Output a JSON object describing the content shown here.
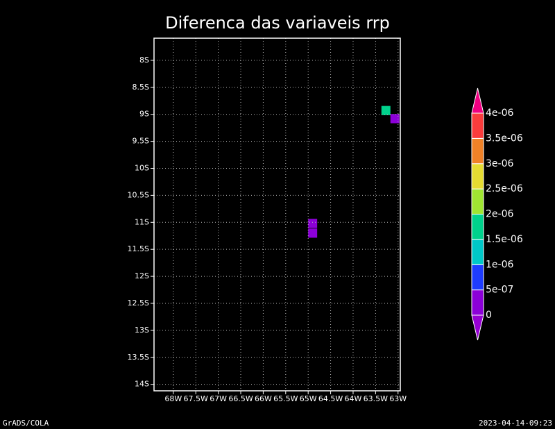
{
  "chart_data": {
    "type": "heatmap",
    "title": "Diferenca das variaveis rrp",
    "footer_left": "GrADS/COLA",
    "footer_right": "2023-04-14-09:23",
    "xlim": [
      -68.43,
      -62.95
    ],
    "ylim": [
      -14.12,
      -7.59
    ],
    "xticks": [
      {
        "value": -68,
        "label": "68W"
      },
      {
        "value": -67.5,
        "label": "67.5W"
      },
      {
        "value": -67,
        "label": "67W"
      },
      {
        "value": -66.5,
        "label": "66.5W"
      },
      {
        "value": -66,
        "label": "66W"
      },
      {
        "value": -65.5,
        "label": "65.5W"
      },
      {
        "value": -65,
        "label": "65W"
      },
      {
        "value": -64.5,
        "label": "64.5W"
      },
      {
        "value": -64,
        "label": "64W"
      },
      {
        "value": -63.5,
        "label": "63.5W"
      },
      {
        "value": -63,
        "label": "63W"
      }
    ],
    "yticks": [
      {
        "value": -8,
        "label": "8S"
      },
      {
        "value": -8.5,
        "label": "8.5S"
      },
      {
        "value": -9,
        "label": "9S"
      },
      {
        "value": -9.5,
        "label": "9.5S"
      },
      {
        "value": -10,
        "label": "10S"
      },
      {
        "value": -10.5,
        "label": "10.5S"
      },
      {
        "value": -11,
        "label": "11S"
      },
      {
        "value": -11.5,
        "label": "11.5S"
      },
      {
        "value": -12,
        "label": "12S"
      },
      {
        "value": -12.5,
        "label": "12.5S"
      },
      {
        "value": -13,
        "label": "13S"
      },
      {
        "value": -13.5,
        "label": "13.5S"
      },
      {
        "value": -14,
        "label": "14S"
      }
    ],
    "grid": true,
    "cells": [
      {
        "lon": -64.9,
        "lat": -11.02,
        "value": 1e-07
      },
      {
        "lon": -64.9,
        "lat": -11.2,
        "value": 1e-07
      },
      {
        "lon": -63.27,
        "lat": -8.93,
        "value": 1.7e-06
      },
      {
        "lon": -63.07,
        "lat": -9.08,
        "value": 2e-07
      }
    ],
    "levels": [
      0,
      {
        "value": 5e-07,
        "label": "5e-07"
      },
      {
        "value": 1e-06,
        "label": "1e-06"
      },
      {
        "value": 1.5e-06,
        "label": "1.5e-06"
      },
      {
        "value": 2e-06,
        "label": "2e-06"
      },
      {
        "value": 2.5e-06,
        "label": "2.5e-06"
      },
      {
        "value": 3e-06,
        "label": "3e-06"
      },
      {
        "value": 3.5e-06,
        "label": "3.5e-06"
      },
      {
        "value": 4e-06,
        "label": "4e-06"
      }
    ],
    "colors": [
      "#9600d2",
      "#8c00d8",
      "#1e3cff",
      "#00c8c8",
      "#00d28c",
      "#a0e632",
      "#e6dc32",
      "#f08228",
      "#fa3c3c",
      "#f00082"
    ]
  }
}
